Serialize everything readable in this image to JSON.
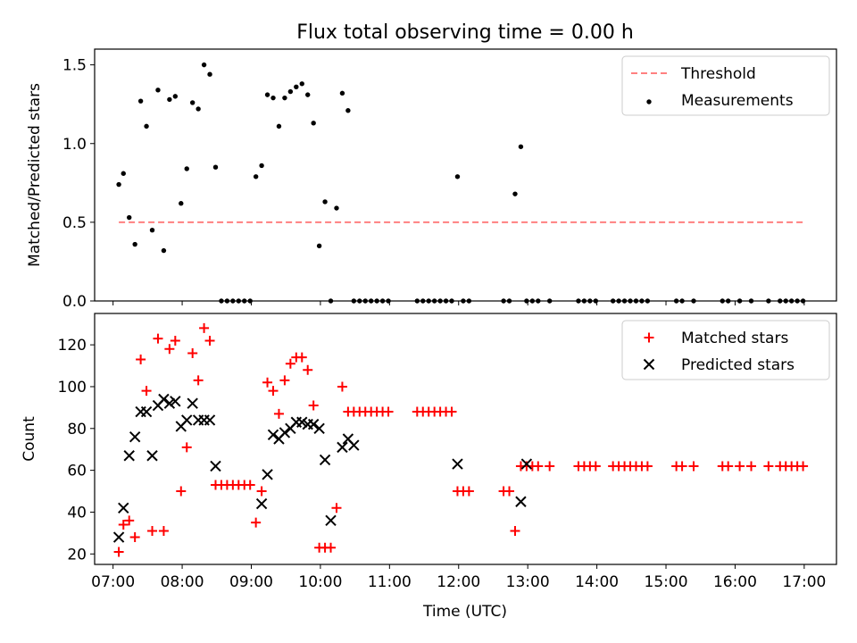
{
  "title": "Flux total observing time = 0.00 h",
  "xlabel": "Time (UTC)",
  "chart_data": [
    {
      "type": "scatter",
      "title": "Flux total observing time = 0.00 h",
      "xlabel": "",
      "ylabel": "Matched/Predicted stars",
      "xlim": [
        "06:44",
        "17:28"
      ],
      "ylim": [
        0,
        1.6
      ],
      "yticks": [
        0.0,
        0.5,
        1.0,
        1.5
      ],
      "ytick_labels": [
        "0.0",
        "0.5",
        "1.0",
        "1.5"
      ],
      "legend": {
        "location": "upper right",
        "entries": [
          "Threshold",
          "Measurements"
        ]
      },
      "series": [
        {
          "name": "Threshold",
          "kind": "dashed-line",
          "color": "#ff8080",
          "x": [
            "07:05",
            "16:59"
          ],
          "y": [
            0.5,
            0.5
          ]
        },
        {
          "name": "Measurements",
          "kind": "dot",
          "color": "#000000",
          "x": [
            "07:05",
            "07:09",
            "07:14",
            "07:19",
            "07:24",
            "07:29",
            "07:34",
            "07:39",
            "07:44",
            "07:49",
            "07:54",
            "07:59",
            "08:04",
            "08:09",
            "08:14",
            "08:19",
            "08:24",
            "08:29",
            "08:34",
            "08:39",
            "08:44",
            "08:49",
            "08:54",
            "08:59",
            "09:04",
            "09:09",
            "09:14",
            "09:19",
            "09:24",
            "09:29",
            "09:34",
            "09:39",
            "09:44",
            "09:49",
            "09:54",
            "09:59",
            "10:04",
            "10:09",
            "10:14",
            "10:19",
            "10:24",
            "10:29",
            "10:34",
            "10:39",
            "10:44",
            "10:49",
            "10:54",
            "10:59",
            "11:24",
            "11:29",
            "11:34",
            "11:39",
            "11:44",
            "11:49",
            "11:54",
            "11:59",
            "12:04",
            "12:09",
            "12:39",
            "12:44",
            "12:49",
            "12:54",
            "12:59",
            "13:04",
            "13:09",
            "13:19",
            "13:44",
            "13:49",
            "13:54",
            "13:59",
            "14:14",
            "14:19",
            "14:24",
            "14:29",
            "14:34",
            "14:39",
            "14:44",
            "15:09",
            "15:14",
            "15:24",
            "15:49",
            "15:54",
            "16:04",
            "16:14",
            "16:29",
            "16:39",
            "16:44",
            "16:49",
            "16:54",
            "16:59"
          ],
          "y": [
            0.74,
            0.81,
            0.53,
            0.36,
            1.27,
            1.11,
            0.45,
            1.34,
            0.32,
            1.28,
            1.3,
            0.62,
            0.84,
            1.26,
            1.22,
            1.5,
            1.44,
            0.85,
            0.0,
            0.0,
            0.0,
            0.0,
            0.0,
            0.0,
            0.79,
            0.86,
            1.31,
            1.29,
            1.11,
            1.29,
            1.33,
            1.36,
            1.38,
            1.31,
            1.13,
            0.35,
            0.63,
            0.0,
            0.59,
            1.32,
            1.21,
            0.0,
            0.0,
            0.0,
            0.0,
            0.0,
            0.0,
            0.0,
            0.0,
            0.0,
            0.0,
            0.0,
            0.0,
            0.0,
            0.0,
            0.79,
            0.0,
            0.0,
            0.0,
            0.0,
            0.68,
            0.98,
            0.0,
            0.0,
            0.0,
            0.0,
            0.0,
            0.0,
            0.0,
            0.0,
            0.0,
            0.0,
            0.0,
            0.0,
            0.0,
            0.0,
            0.0,
            0.0,
            0.0,
            0.0,
            0.0,
            0.0,
            0.0,
            0.0,
            0.0,
            0.0,
            0.0,
            0.0,
            0.0,
            0.0
          ]
        }
      ]
    },
    {
      "type": "scatter",
      "xlabel": "Time (UTC)",
      "ylabel": "Count",
      "xlim": [
        "06:44",
        "17:28"
      ],
      "ylim": [
        15,
        135
      ],
      "yticks": [
        20,
        40,
        60,
        80,
        100,
        120
      ],
      "ytick_labels": [
        "20",
        "40",
        "60",
        "80",
        "100",
        "120"
      ],
      "xticks": [
        "07:00",
        "08:00",
        "09:00",
        "10:00",
        "11:00",
        "12:00",
        "13:00",
        "14:00",
        "15:00",
        "16:00",
        "17:00"
      ],
      "xtick_labels": [
        "07:00",
        "08:00",
        "09:00",
        "10:00",
        "11:00",
        "12:00",
        "13:00",
        "14:00",
        "15:00",
        "16:00",
        "17:00"
      ],
      "legend": {
        "location": "upper right",
        "entries": [
          "Matched stars",
          "Predicted stars"
        ]
      },
      "series": [
        {
          "name": "Matched stars",
          "marker": "+",
          "color": "#ff0000",
          "x": [
            "07:05",
            "07:09",
            "07:14",
            "07:19",
            "07:24",
            "07:29",
            "07:34",
            "07:39",
            "07:44",
            "07:49",
            "07:54",
            "07:59",
            "08:04",
            "08:09",
            "08:14",
            "08:19",
            "08:24",
            "08:29",
            "08:34",
            "08:39",
            "08:44",
            "08:49",
            "08:54",
            "08:59",
            "09:04",
            "09:09",
            "09:14",
            "09:19",
            "09:24",
            "09:29",
            "09:34",
            "09:39",
            "09:44",
            "09:49",
            "09:54",
            "09:59",
            "10:04",
            "10:09",
            "10:14",
            "10:19",
            "10:24",
            "10:29",
            "10:34",
            "10:39",
            "10:44",
            "10:49",
            "10:54",
            "10:59",
            "11:24",
            "11:29",
            "11:34",
            "11:39",
            "11:44",
            "11:49",
            "11:54",
            "11:59",
            "12:04",
            "12:09",
            "12:39",
            "12:44",
            "12:49",
            "12:54",
            "12:59",
            "13:04",
            "13:09",
            "13:19",
            "13:44",
            "13:49",
            "13:54",
            "13:59",
            "14:14",
            "14:19",
            "14:24",
            "14:29",
            "14:34",
            "14:39",
            "14:44",
            "15:09",
            "15:14",
            "15:24",
            "15:49",
            "15:54",
            "16:04",
            "16:14",
            "16:29",
            "16:39",
            "16:44",
            "16:49",
            "16:54",
            "16:59"
          ],
          "y": [
            21,
            34,
            36,
            28,
            113,
            98,
            31,
            123,
            31,
            118,
            122,
            50,
            71,
            116,
            103,
            128,
            122,
            53,
            53,
            53,
            53,
            53,
            53,
            53,
            35,
            50,
            102,
            98,
            87,
            103,
            111,
            114,
            114,
            108,
            91,
            23,
            23,
            23,
            42,
            100,
            88,
            88,
            88,
            88,
            88,
            88,
            88,
            88,
            88,
            88,
            88,
            88,
            88,
            88,
            88,
            50,
            50,
            50,
            50,
            50,
            31,
            62,
            62,
            62,
            62,
            62,
            62,
            62,
            62,
            62,
            62,
            62,
            62,
            62,
            62,
            62,
            62,
            62,
            62,
            62,
            62,
            62,
            62,
            62,
            62,
            62,
            62,
            62,
            62,
            62
          ]
        },
        {
          "name": "Predicted stars",
          "marker": "x",
          "color": "#000000",
          "x": [
            "07:05",
            "07:09",
            "07:14",
            "07:19",
            "07:24",
            "07:29",
            "07:34",
            "07:39",
            "07:44",
            "07:49",
            "07:54",
            "07:59",
            "08:04",
            "08:09",
            "08:14",
            "08:19",
            "08:24",
            "08:29",
            "09:09",
            "09:14",
            "09:19",
            "09:24",
            "09:29",
            "09:34",
            "09:39",
            "09:44",
            "09:49",
            "09:54",
            "09:59",
            "10:04",
            "10:09",
            "10:19",
            "10:24",
            "10:29",
            "11:59",
            "12:54",
            "12:59"
          ],
          "y": [
            28,
            42,
            67,
            76,
            88,
            88,
            67,
            91,
            94,
            92,
            93,
            81,
            84,
            92,
            84,
            84,
            84,
            62,
            44,
            58,
            77,
            75,
            78,
            80,
            83,
            83,
            82,
            82,
            80,
            65,
            36,
            71,
            75,
            72,
            63,
            45,
            63
          ]
        }
      ]
    }
  ]
}
